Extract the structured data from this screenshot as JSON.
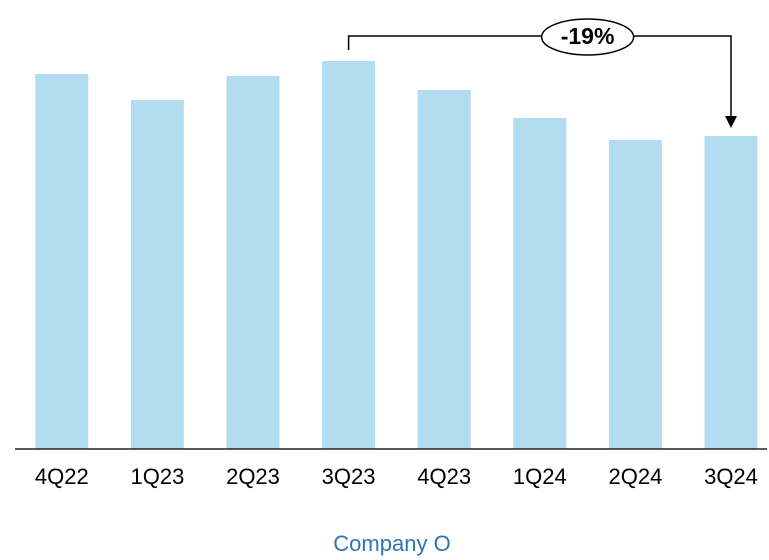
{
  "chart_data": {
    "type": "bar",
    "title": "Company O",
    "categories": [
      "4Q22",
      "1Q23",
      "2Q23",
      "3Q23",
      "4Q23",
      "1Q24",
      "2Q24",
      "3Q24"
    ],
    "values": [
      375,
      349,
      373,
      388,
      359,
      331,
      309,
      313
    ],
    "color": "#b4dcf0",
    "annotation": {
      "label": "-19%",
      "from": "3Q23",
      "to": "3Q24"
    }
  }
}
